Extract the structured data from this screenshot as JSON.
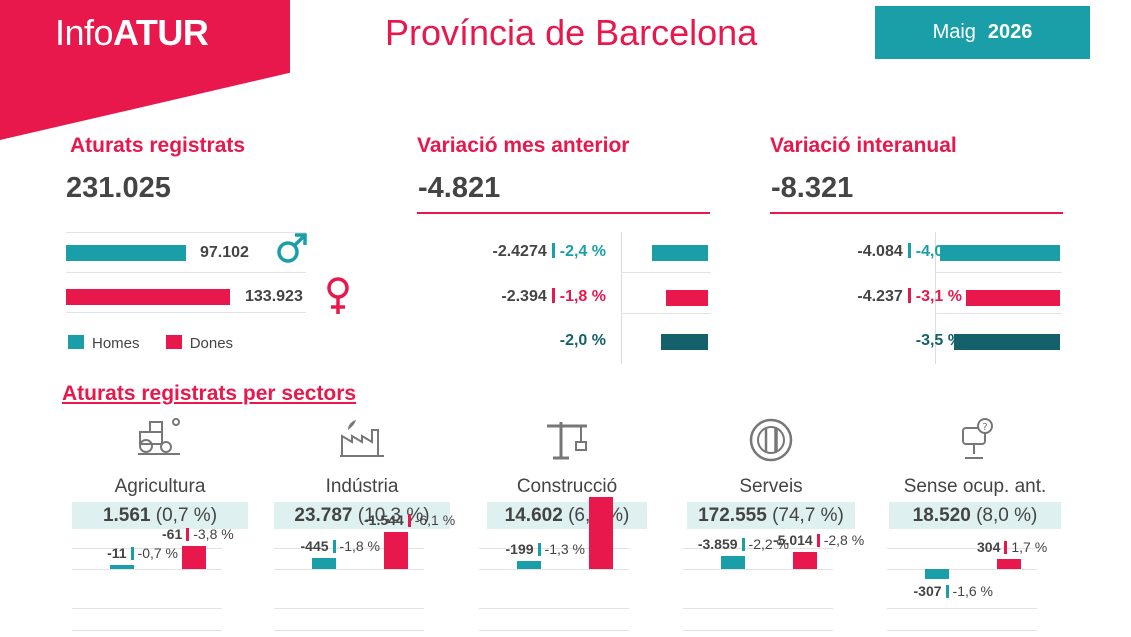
{
  "header": {
    "brand_light": "Info",
    "brand_bold": "ATUR",
    "province": "Província de Barcelona",
    "month": "Maig",
    "year": "2026"
  },
  "colors": {
    "accent_red": "#e8184c",
    "teal": "#1a9fa9",
    "dark_teal": "#15616b"
  },
  "registered": {
    "title": "Aturats registrats",
    "total": "231.025",
    "men_value": "97.102",
    "women_value": "133.923",
    "men_icon": "male-symbol-icon",
    "women_icon": "female-symbol-icon",
    "legend_men": "Homes",
    "legend_women": "Dones"
  },
  "monthly": {
    "title": "Variació mes anterior",
    "total": "-4.821",
    "rows": [
      {
        "value": "-2.4274",
        "pct": "-2,4 %",
        "level": 0.78
      },
      {
        "value": "-2.394",
        "pct": "-1,8 %",
        "level": 0.58
      },
      {
        "value": "",
        "pct": "-2,0 %",
        "level": 0.65
      }
    ]
  },
  "annual": {
    "title": "Variació interanual",
    "total": "-8.321",
    "rows": [
      {
        "value": "-4.084",
        "pct": "-4,0 %",
        "level": 1.0
      },
      {
        "value": "-4.237",
        "pct": "-3,1 %",
        "level": 0.78
      },
      {
        "value": "",
        "pct": "-3,5 %",
        "level": 0.88
      }
    ]
  },
  "sectors": {
    "title": "Aturats registrats per sectors",
    "items": [
      {
        "name": "Agricultura",
        "icon": "tractor-icon",
        "value": "1.561",
        "share": "(0,7 %)",
        "men_value": "-11",
        "men_pct": "-0,7 %",
        "women_value": "-61",
        "women_pct": "-3,8 %",
        "men_level": 0.7,
        "women_level": 3.8
      },
      {
        "name": "Indústria",
        "icon": "factory-icon",
        "value": "23.787",
        "share": "(10,3 %)",
        "men_value": "-445",
        "men_pct": "-1,8 %",
        "women_value": "-1.544",
        "women_pct": "-6,1 %",
        "men_level": 1.8,
        "women_level": 6.1
      },
      {
        "name": "Construcció",
        "icon": "crane-icon",
        "value": "14.602",
        "share": "(6,3 %)",
        "men_value": "-199",
        "men_pct": "-1,3 %",
        "women_value": "",
        "women_pct": "",
        "men_level": 1.3,
        "women_level": 12.0
      },
      {
        "name": "Serveis",
        "icon": "plate-cutlery-icon",
        "value": "172.555",
        "share": "(74,7 %)",
        "men_value": "-3.859",
        "men_pct": "-2,2 %",
        "women_value": "-5.014",
        "women_pct": "-2,8 %",
        "men_level": 2.2,
        "women_level": 2.8
      },
      {
        "name": "Sense ocup. ant.",
        "icon": "office-chair-question-icon",
        "value": "18.520",
        "share": "(8,0 %)",
        "men_value": "-307",
        "men_pct": "-1,6 %",
        "women_value": "304",
        "women_pct": "1,7 %",
        "men_level": -1.6,
        "women_level": 1.7
      }
    ]
  }
}
